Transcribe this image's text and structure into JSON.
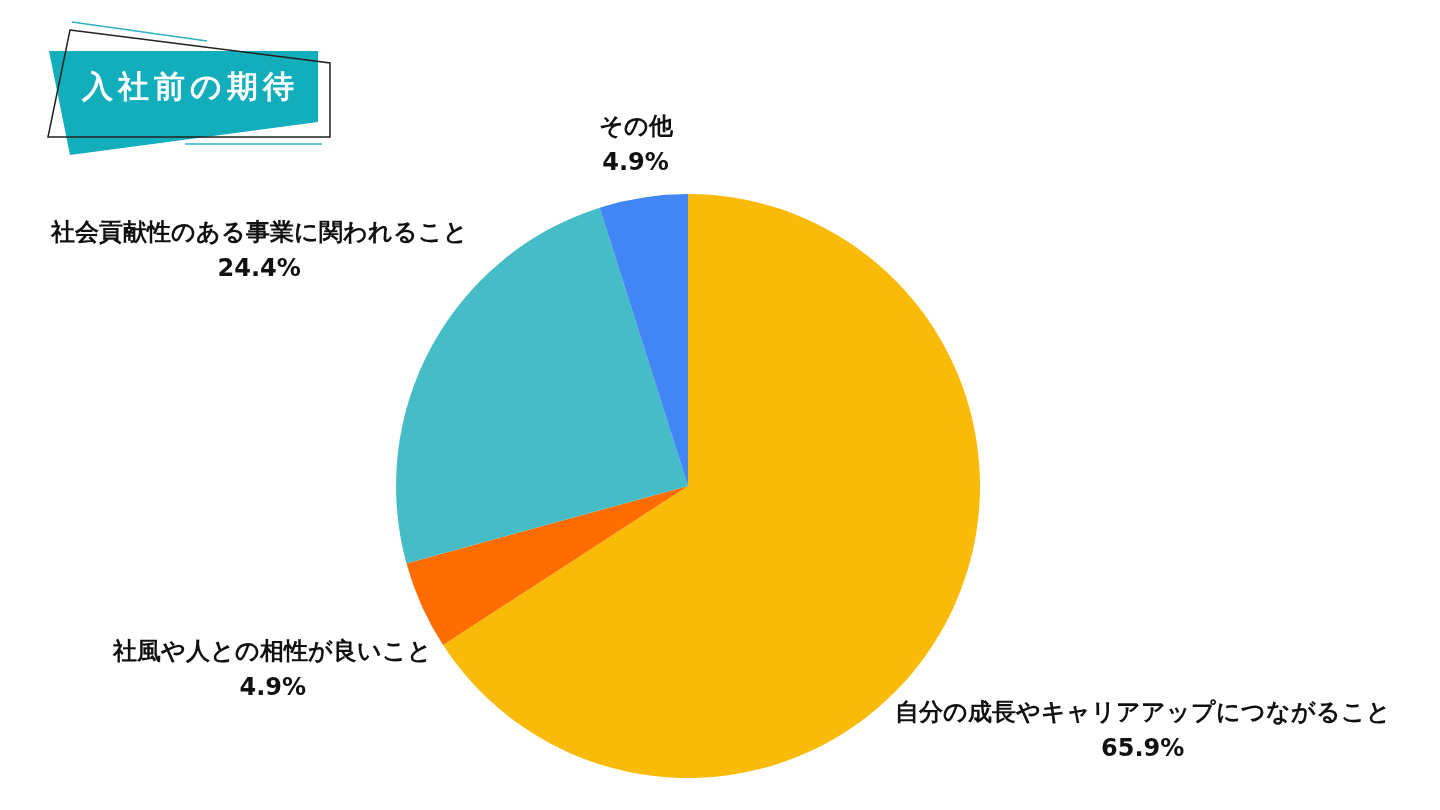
{
  "chart_data": {
    "type": "pie",
    "title": "入社前の期待",
    "categories": [
      "自分の成長やキャリアアップにつながること",
      "社風や人との相性が良いこと",
      "社会貢献性のある事業に関われること",
      "その他"
    ],
    "values": [
      65.9,
      4.9,
      24.4,
      4.9
    ],
    "value_labels": [
      "65.9%",
      "4.9%",
      "24.4%",
      "4.9%"
    ],
    "colors": [
      "#f9bb07",
      "#ff6d01",
      "#46bdc6",
      "#4285f4"
    ]
  }
}
